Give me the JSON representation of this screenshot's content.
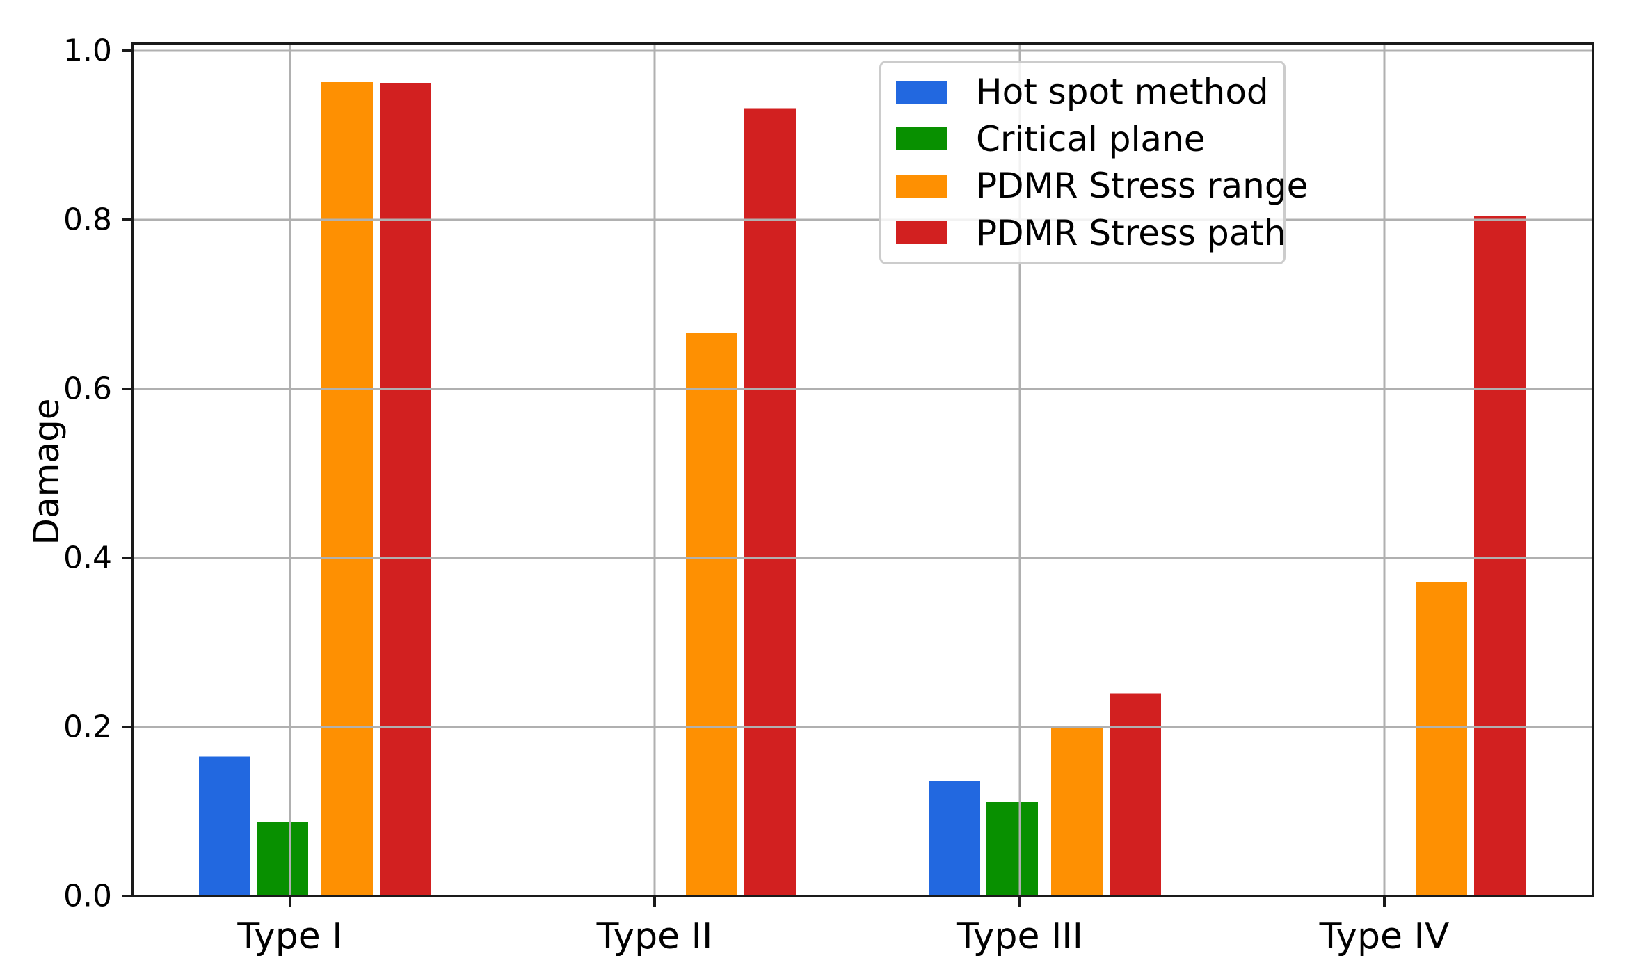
{
  "chart_data": {
    "type": "bar",
    "title": "",
    "categories": [
      "Type I",
      "Type II",
      "Type III",
      "Type IV"
    ],
    "series": [
      {
        "name": "Hot spot method",
        "color": "#2268e0",
        "values": [
          0.165,
          0,
          0.136,
          0
        ]
      },
      {
        "name": "Critical plane",
        "color": "#089000",
        "values": [
          0.088,
          0,
          0.111,
          0
        ]
      },
      {
        "name": "PDMR Stress range",
        "color": "#fe9002",
        "values": [
          0.963,
          0.666,
          0.2,
          0.372
        ]
      },
      {
        "name": "PDMR Stress path",
        "color": "#d22020",
        "values": [
          0.962,
          0.932,
          0.24,
          0.805
        ]
      }
    ],
    "xlabel": "",
    "ylabel": "Damage",
    "yticks": [
      "0.0",
      "0.2",
      "0.4",
      "0.6",
      "0.8",
      "1.0"
    ],
    "ylim": [
      0,
      1.008
    ],
    "grid": true,
    "grid_color": "#b0b0b0",
    "spine_color": "#1a1a1a",
    "text_color": "#000000",
    "legend_position": "upper right"
  }
}
